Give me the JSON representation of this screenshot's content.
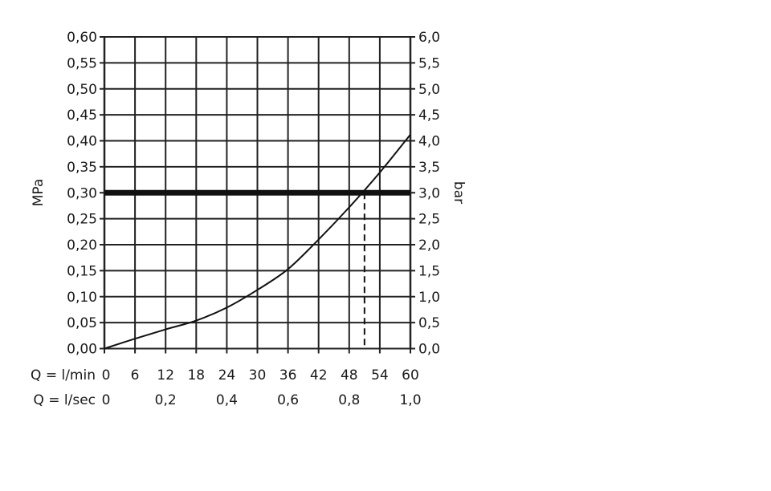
{
  "chart_data": {
    "type": "line",
    "title": "",
    "ylabel_left": "MPa",
    "ylabel_right": "bar",
    "xlabel_rows": [
      {
        "label": "Q = l/min",
        "ticks": [
          "0",
          "6",
          "12",
          "18",
          "24",
          "30",
          "36",
          "42",
          "48",
          "54",
          "60"
        ],
        "values": [
          0,
          6,
          12,
          18,
          24,
          30,
          36,
          42,
          48,
          54,
          60
        ]
      },
      {
        "label": "Q = l/sec",
        "ticks": [
          "0",
          "0,2",
          "0,4",
          "0,6",
          "0,8",
          "1,0"
        ],
        "values": [
          0,
          12,
          24,
          36,
          48,
          60
        ]
      }
    ],
    "xlim": [
      0,
      60
    ],
    "ylim": [
      0,
      0.6
    ],
    "yticks_left": [
      "0,00",
      "0,05",
      "0,10",
      "0,15",
      "0,20",
      "0,25",
      "0,30",
      "0,35",
      "0,40",
      "0,45",
      "0,50",
      "0,55",
      "0,60"
    ],
    "yticks_right": [
      "0,0",
      "0,5",
      "1,0",
      "1,5",
      "2,0",
      "2,5",
      "3,0",
      "3,5",
      "4,0",
      "4,5",
      "5,0",
      "5,5",
      "6,0"
    ],
    "grid": true,
    "series": [
      {
        "x": [
          0,
          6,
          12,
          18,
          24,
          30,
          36,
          42,
          48,
          54,
          60
        ],
        "y": [
          0,
          0.019,
          0.037,
          0.054,
          0.079,
          0.113,
          0.153,
          0.21,
          0.272,
          0.339,
          0.412
        ]
      }
    ],
    "reference_line": {
      "y": 0.3
    },
    "operating_point": {
      "x": 51,
      "y": 0.3
    }
  }
}
